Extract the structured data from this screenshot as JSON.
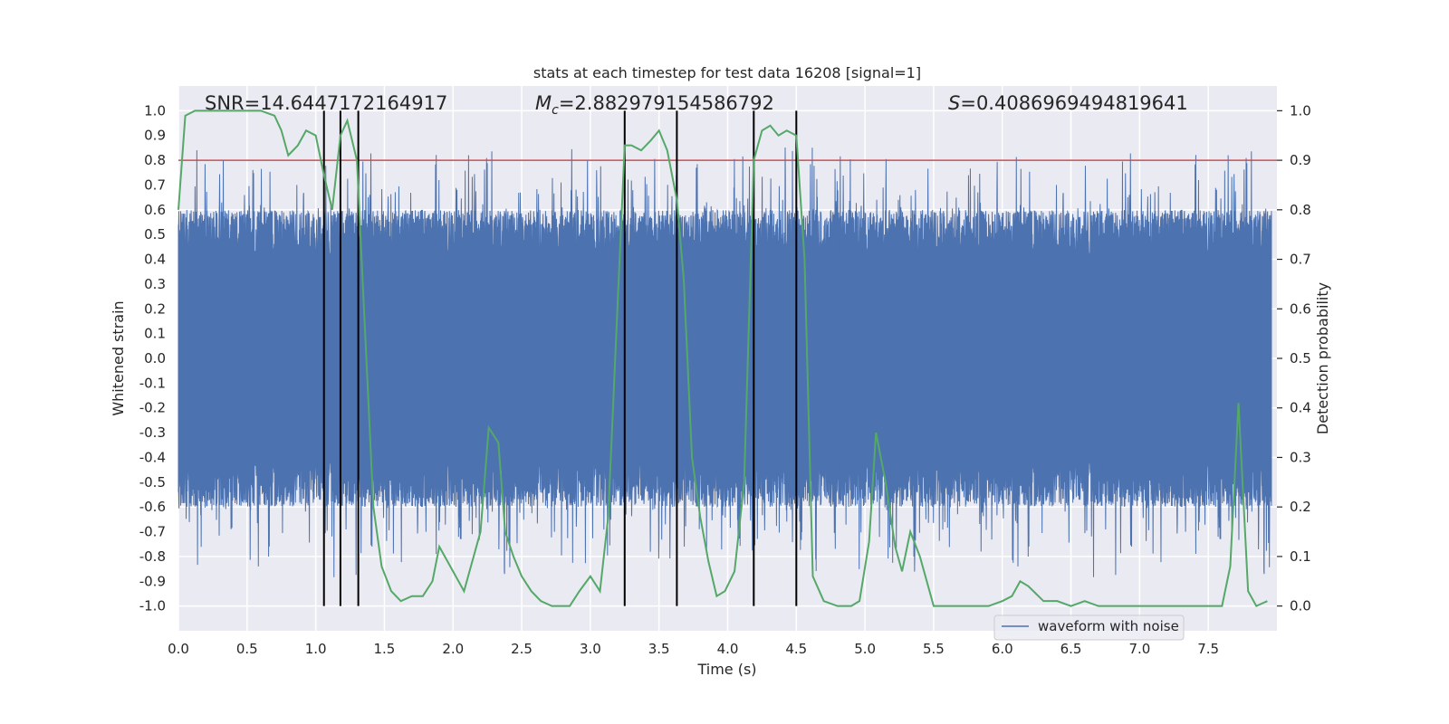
{
  "chart_data": {
    "type": "line",
    "title": "stats at each timestep for test data 16208 [signal=1]",
    "xlabel": "Time (s)",
    "ylabel": "Whitened strain",
    "y2label": "Detection probability",
    "xlim": [
      0.0,
      8.0
    ],
    "ylim": [
      -1.1,
      1.1
    ],
    "y2lim": [
      -0.05,
      1.05
    ],
    "x_ticks": [
      "0.0",
      "0.5",
      "1.0",
      "1.5",
      "2.0",
      "2.5",
      "3.0",
      "3.5",
      "4.0",
      "4.5",
      "5.0",
      "5.5",
      "6.0",
      "6.5",
      "7.0",
      "7.5"
    ],
    "y_ticks": [
      "1.0",
      "0.9",
      "0.8",
      "0.7",
      "0.6",
      "0.5",
      "0.4",
      "0.3",
      "0.2",
      "0.1",
      "0.0",
      "-0.1",
      "-0.2",
      "-0.3",
      "-0.4",
      "-0.5",
      "-0.6",
      "-0.7",
      "-0.8",
      "-0.9",
      "-1.0"
    ],
    "y2_ticks": [
      "1.0",
      "0.9",
      "0.8",
      "0.7",
      "0.6",
      "0.5",
      "0.4",
      "0.3",
      "0.2",
      "0.1",
      "0.0"
    ],
    "grid": true,
    "legend_position": "lower-right",
    "annotations": {
      "snr": "SNR=14.6447172164917",
      "mc_symbol": "M",
      "mc_subscript": "c",
      "mc_value": "=2.882979154586792",
      "s_symbol": "S",
      "s_value": "=0.4086969494819641"
    },
    "threshold": 0.9,
    "event_lines_x": [
      1.06,
      1.18,
      1.31,
      3.25,
      3.63,
      4.19,
      4.5
    ],
    "series": [
      {
        "name": "waveform with noise",
        "color": "#4c72b0",
        "envelope_typical": 0.6,
        "envelope_peak_max": 1.0,
        "envelope_peak_min": -0.98
      },
      {
        "color": "#55a868",
        "axis": "right",
        "x": [
          0.0,
          0.05,
          0.12,
          0.2,
          0.3,
          0.4,
          0.5,
          0.6,
          0.7,
          0.75,
          0.8,
          0.87,
          0.93,
          1.0,
          1.06,
          1.12,
          1.18,
          1.23,
          1.3,
          1.36,
          1.42,
          1.48,
          1.55,
          1.62,
          1.7,
          1.78,
          1.85,
          1.9,
          1.96,
          2.02,
          2.08,
          2.13,
          2.2,
          2.26,
          2.33,
          2.38,
          2.44,
          2.5,
          2.57,
          2.64,
          2.72,
          2.78,
          2.85,
          2.92,
          3.0,
          3.07,
          3.13,
          3.2,
          3.25,
          3.3,
          3.37,
          3.44,
          3.5,
          3.56,
          3.63,
          3.68,
          3.74,
          3.8,
          3.86,
          3.92,
          3.98,
          4.05,
          4.12,
          4.19,
          4.25,
          4.31,
          4.37,
          4.43,
          4.5,
          4.56,
          4.62,
          4.7,
          4.8,
          4.9,
          4.96,
          5.03,
          5.08,
          5.15,
          5.22,
          5.27,
          5.33,
          5.4,
          5.5,
          5.6,
          5.7,
          5.8,
          5.9,
          6.0,
          6.07,
          6.13,
          6.19,
          6.3,
          6.4,
          6.5,
          6.6,
          6.7,
          6.8,
          7.0,
          7.2,
          7.4,
          7.6,
          7.66,
          7.72,
          7.79,
          7.85,
          7.93
        ],
        "y": [
          0.8,
          0.99,
          1.0,
          1.0,
          1.0,
          1.0,
          1.0,
          1.0,
          0.99,
          0.96,
          0.91,
          0.93,
          0.96,
          0.95,
          0.87,
          0.8,
          0.95,
          0.98,
          0.9,
          0.55,
          0.2,
          0.08,
          0.03,
          0.01,
          0.02,
          0.02,
          0.05,
          0.12,
          0.09,
          0.06,
          0.03,
          0.08,
          0.15,
          0.36,
          0.33,
          0.15,
          0.1,
          0.06,
          0.03,
          0.01,
          0.0,
          0.0,
          0.0,
          0.03,
          0.06,
          0.03,
          0.18,
          0.62,
          0.93,
          0.93,
          0.92,
          0.94,
          0.96,
          0.92,
          0.82,
          0.66,
          0.3,
          0.18,
          0.09,
          0.02,
          0.03,
          0.07,
          0.25,
          0.9,
          0.96,
          0.97,
          0.95,
          0.96,
          0.95,
          0.7,
          0.06,
          0.01,
          0.0,
          0.0,
          0.01,
          0.13,
          0.35,
          0.25,
          0.12,
          0.07,
          0.15,
          0.1,
          0.0,
          0.0,
          0.0,
          0.0,
          0.0,
          0.01,
          0.02,
          0.05,
          0.04,
          0.01,
          0.01,
          0.0,
          0.01,
          0.0,
          0.0,
          0.0,
          0.0,
          0.0,
          0.0,
          0.08,
          0.41,
          0.03,
          0.0,
          0.01
        ]
      }
    ]
  }
}
